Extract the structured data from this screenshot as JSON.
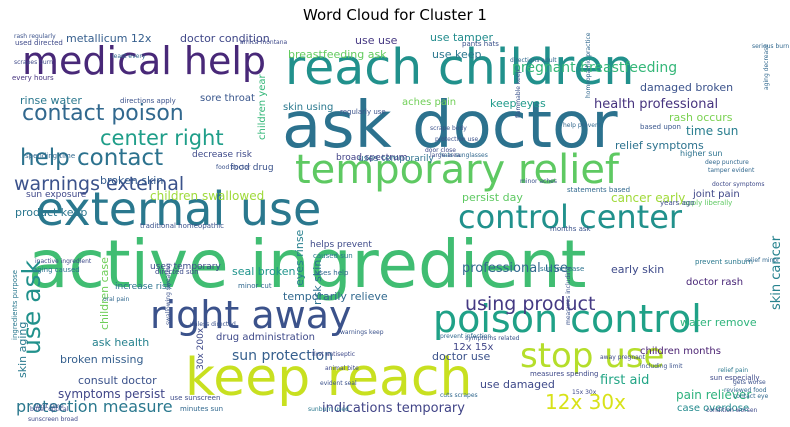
{
  "title": "Word Cloud for Cluster 1",
  "words": [
    {
      "text": "active ingredient",
      "weight": 1.0,
      "color": "#40bd72"
    },
    {
      "text": "ask doctor",
      "weight": 0.98,
      "color": "#2c728e"
    },
    {
      "text": "reach children",
      "weight": 0.92,
      "color": "#21918c"
    },
    {
      "text": "external use",
      "weight": 0.84,
      "color": "#2a788e"
    },
    {
      "text": "keep reach",
      "weight": 0.78,
      "color": "#c8e020"
    },
    {
      "text": "temporary relief",
      "weight": 0.7,
      "color": "#5ec962"
    },
    {
      "text": "medical help",
      "weight": 0.66,
      "color": "#482878"
    },
    {
      "text": "poison control",
      "weight": 0.62,
      "color": "#1fa187"
    },
    {
      "text": "right away",
      "weight": 0.6,
      "color": "#3b528b"
    },
    {
      "text": "control center",
      "weight": 0.54,
      "color": "#21918c"
    },
    {
      "text": "stop use",
      "weight": 0.52,
      "color": "#b5de2b"
    },
    {
      "text": "help contact",
      "weight": 0.44,
      "color": "#2c728e"
    },
    {
      "text": "use ask",
      "weight": 0.44,
      "color": "#21918c"
    },
    {
      "text": "contact poison",
      "weight": 0.42,
      "color": "#31688e"
    },
    {
      "text": "center right",
      "weight": 0.42,
      "color": "#1f9e89"
    },
    {
      "text": "warnings external",
      "weight": 0.38,
      "color": "#3b528b"
    },
    {
      "text": "using product",
      "weight": 0.36,
      "color": "#443983"
    },
    {
      "text": "12x 30x",
      "weight": 0.34,
      "color": "#d8e219"
    },
    {
      "text": "protection measure",
      "weight": 0.3,
      "color": "#2a788e"
    },
    {
      "text": "pregnant breastfeeding",
      "weight": 0.28,
      "color": "#35b779"
    },
    {
      "text": "sun protection",
      "weight": 0.28,
      "color": "#355f8d"
    },
    {
      "text": "professional use",
      "weight": 0.26,
      "color": "#31688e"
    },
    {
      "text": "indications temporary",
      "weight": 0.26,
      "color": "#414487"
    },
    {
      "text": "health professional",
      "weight": 0.24,
      "color": "#46337e"
    },
    {
      "text": "skin cancer",
      "weight": 0.24,
      "color": "#26828e"
    },
    {
      "text": "first aid",
      "weight": 0.24,
      "color": "#21a585"
    },
    {
      "text": "children swallowed",
      "weight": 0.22,
      "color": "#9fda3a"
    },
    {
      "text": "symptoms persist",
      "weight": 0.22,
      "color": "#404688"
    },
    {
      "text": "temporarily relieve",
      "weight": 0.22,
      "color": "#31688e"
    },
    {
      "text": "use damaged",
      "weight": 0.2,
      "color": "#3e4989"
    },
    {
      "text": "time sun",
      "weight": 0.2,
      "color": "#287d8e"
    },
    {
      "text": "cancer early",
      "weight": 0.2,
      "color": "#a0da39"
    },
    {
      "text": "pain reliever",
      "weight": 0.2,
      "color": "#2db27d"
    },
    {
      "text": "broken missing",
      "weight": 0.19,
      "color": "#355f8d"
    },
    {
      "text": "consult doctor",
      "weight": 0.19,
      "color": "#3b528b"
    },
    {
      "text": "ask health",
      "weight": 0.19,
      "color": "#26828e"
    },
    {
      "text": "persist day",
      "weight": 0.19,
      "color": "#5ec962"
    },
    {
      "text": "keep eyes",
      "weight": 0.18,
      "color": "#1f9a8a"
    },
    {
      "text": "damaged broken",
      "weight": 0.18,
      "color": "#3b528b"
    },
    {
      "text": "rash occurs",
      "weight": 0.18,
      "color": "#7ad151"
    },
    {
      "text": "early skin",
      "weight": 0.18,
      "color": "#3e4a89"
    },
    {
      "text": "seal broken",
      "weight": 0.18,
      "color": "#1f948c"
    },
    {
      "text": "relief symptoms",
      "weight": 0.16,
      "color": "#2c728e"
    },
    {
      "text": "broken skin",
      "weight": 0.16,
      "color": "#365c8d"
    },
    {
      "text": "product keep",
      "weight": 0.16,
      "color": "#2a768e"
    },
    {
      "text": "use use",
      "weight": 0.16,
      "color": "#453882"
    },
    {
      "text": "use tamper",
      "weight": 0.16,
      "color": "#228c8d"
    },
    {
      "text": "use keep",
      "weight": 0.16,
      "color": "#2a778e"
    },
    {
      "text": "doctor condition",
      "weight": 0.16,
      "color": "#3f4788"
    },
    {
      "text": "metallicum 12x",
      "weight": 0.16,
      "color": "#355e8d"
    },
    {
      "text": "breastfeeding ask",
      "weight": 0.16,
      "color": "#63cb5f"
    },
    {
      "text": "rinse water",
      "weight": 0.16,
      "color": "#2a778e"
    },
    {
      "text": "water remove",
      "weight": 0.16,
      "color": "#2fb47c"
    },
    {
      "text": "doctor use",
      "weight": 0.16,
      "color": "#3b528b"
    },
    {
      "text": "children months",
      "weight": 0.15,
      "color": "#481f70"
    },
    {
      "text": "drug administration",
      "weight": 0.15,
      "color": "#3e4989"
    },
    {
      "text": "12x 15x",
      "weight": 0.15,
      "color": "#404688"
    },
    {
      "text": "case overdose",
      "weight": 0.14,
      "color": "#238a8d"
    },
    {
      "text": "uses temporary",
      "weight": 0.14,
      "color": "#3e4c8a"
    },
    {
      "text": "skin using",
      "weight": 0.14,
      "color": "#2a788e"
    },
    {
      "text": "aches pain",
      "weight": 0.14,
      "color": "#70cf57"
    },
    {
      "text": "sore throat",
      "weight": 0.14,
      "color": "#39568c"
    },
    {
      "text": "joint pain",
      "weight": 0.14,
      "color": "#3f4788"
    },
    {
      "text": "doctor rash",
      "weight": 0.14,
      "color": "#482576"
    },
    {
      "text": "uses temporarily",
      "weight": 0.12,
      "color": "#2d718e"
    },
    {
      "text": "decrease risk",
      "weight": 0.12,
      "color": "#3e4a89"
    },
    {
      "text": "helps prevent",
      "weight": 0.12,
      "color": "#3e4a89"
    },
    {
      "text": "broad spectrum",
      "weight": 0.12,
      "color": "#414287"
    },
    {
      "text": "sun exposure",
      "weight": 0.12,
      "color": "#3f4788"
    },
    {
      "text": "increase risk",
      "weight": 0.12,
      "color": "#2c728e"
    },
    {
      "text": "children case",
      "weight": 0.12,
      "color": "#6ece58"
    },
    {
      "text": "skin aging",
      "weight": 0.12,
      "color": "#297a8e"
    },
    {
      "text": "eyes rinse",
      "weight": 0.12,
      "color": "#27808e"
    },
    {
      "text": "risk skin",
      "weight": 0.12,
      "color": "#2c728e"
    },
    {
      "text": "children year",
      "weight": 0.11,
      "color": "#35b779"
    },
    {
      "text": "food drug",
      "weight": 0.11,
      "color": "#3b528b"
    },
    {
      "text": "uses help",
      "weight": 0.1,
      "color": "#31688e"
    },
    {
      "text": "use sunscreen",
      "weight": 0.1,
      "color": "#3e4c8a"
    },
    {
      "text": "higher sun",
      "weight": 0.1,
      "color": "#2c728e"
    },
    {
      "text": "regularly use",
      "weight": 0.1,
      "color": "#3b528b"
    },
    {
      "text": "used directed",
      "weight": 0.1,
      "color": "#3e4989"
    },
    {
      "text": "directions apply",
      "weight": 0.1,
      "color": "#3b528b"
    },
    {
      "text": "minutes sun",
      "weight": 0.09,
      "color": "#31688e"
    },
    {
      "text": "measures spending",
      "weight": 0.09,
      "color": "#3e4989"
    },
    {
      "text": "spending time",
      "weight": 0.09,
      "color": "#31688e"
    },
    {
      "text": "directed sun",
      "weight": 0.09,
      "color": "#3e4c8a"
    },
    {
      "text": "based upon",
      "weight": 0.09,
      "color": "#39568c"
    },
    {
      "text": "months ask",
      "weight": 0.09,
      "color": "#3b528b"
    },
    {
      "text": "aging caused",
      "weight": 0.09,
      "color": "#2c728e"
    },
    {
      "text": "apply liberally",
      "weight": 0.09,
      "color": "#5ec962"
    },
    {
      "text": "years ago",
      "weight": 0.09,
      "color": "#3e4c8a"
    },
    {
      "text": "sun increase",
      "weight": 0.09,
      "color": "#2c728e"
    },
    {
      "text": "pants hats",
      "weight": 0.09,
      "color": "#3b528b"
    },
    {
      "text": "every hours",
      "weight": 0.09,
      "color": "#46337e"
    },
    {
      "text": "minor cut",
      "weight": 0.09,
      "color": "#31688e"
    },
    {
      "text": "caused sun",
      "weight": 0.09,
      "color": "#2a788e"
    },
    {
      "text": "statements based",
      "weight": 0.09,
      "color": "#31688e"
    },
    {
      "text": "prevent sunburn",
      "weight": 0.09,
      "color": "#2a788e"
    },
    {
      "text": "sun especially",
      "weight": 0.09,
      "color": "#3e4989"
    },
    {
      "text": "relief pain",
      "weight": 0.08,
      "color": "#2a788e"
    },
    {
      "text": "large area",
      "weight": 0.08,
      "color": "#3e4989"
    },
    {
      "text": "cuts scrapes",
      "weight": 0.08,
      "color": "#31688e"
    },
    {
      "text": "symptoms related",
      "weight": 0.08,
      "color": "#3b528b"
    },
    {
      "text": "including limit",
      "weight": 0.08,
      "color": "#3b528b"
    },
    {
      "text": "aging decrease",
      "weight": 0.08,
      "color": "#31688e"
    },
    {
      "text": "15x 30x",
      "weight": 0.08,
      "color": "#3e4989"
    },
    {
      "text": "30x 200x",
      "weight": 0.08,
      "color": "#3e4989"
    },
    {
      "text": "food doctor",
      "weight": 0.08,
      "color": "#3b528b"
    },
    {
      "text": "ingredients purpose",
      "weight": 0.08,
      "color": "#2a788e"
    },
    {
      "text": "least every",
      "weight": 0.08,
      "color": "#31688e"
    },
    {
      "text": "sunscreen broad",
      "weight": 0.08,
      "color": "#3e4989"
    },
    {
      "text": "measures including",
      "weight": 0.08,
      "color": "#3b528b"
    },
    {
      "text": "reviewed food",
      "weight": 0.08,
      "color": "#31688e"
    },
    {
      "text": "condition worsen",
      "weight": 0.08,
      "color": "#3e4989"
    },
    {
      "text": "protection use",
      "weight": 0.08,
      "color": "#3b528b"
    },
    {
      "text": "help prevent",
      "weight": 0.08,
      "color": "#31688e"
    },
    {
      "text": "scrapes burn",
      "weight": 0.08,
      "color": "#3e4989"
    },
    {
      "text": "serious burn",
      "weight": 0.08,
      "color": "#31688e"
    },
    {
      "text": "limit time",
      "weight": 0.08,
      "color": "#3b528b"
    },
    {
      "text": "sunburn used",
      "weight": 0.08,
      "color": "#2a788e"
    },
    {
      "text": "warnings keep",
      "weight": 0.08,
      "color": "#3b528b"
    },
    {
      "text": "relief minor",
      "weight": 0.08,
      "color": "#31688e"
    },
    {
      "text": "rash regularly",
      "weight": 0.08,
      "color": "#3b528b"
    },
    {
      "text": "animal bite",
      "weight": 0.08,
      "color": "#3e4989"
    },
    {
      "text": "evident seal",
      "weight": 0.08,
      "color": "#3b528b"
    },
    {
      "text": "tamper evident",
      "weight": 0.08,
      "color": "#31688e"
    },
    {
      "text": "inactive ingredient",
      "weight": 0.08,
      "color": "#3e4989"
    },
    {
      "text": "gets worse",
      "weight": 0.08,
      "color": "#3b528b"
    },
    {
      "text": "contact eye",
      "weight": 0.08,
      "color": "#31688e"
    },
    {
      "text": "away pregnant",
      "weight": 0.08,
      "color": "#3e4989"
    },
    {
      "text": "minor aches",
      "weight": 0.08,
      "color": "#3b528b"
    },
    {
      "text": "oral pain",
      "weight": 0.08,
      "color": "#31688e"
    },
    {
      "text": "arnica montana",
      "weight": 0.08,
      "color": "#3e4989"
    },
    {
      "text": "flammable keep",
      "weight": 0.08,
      "color": "#3b528b"
    },
    {
      "text": "deep puncture",
      "weight": 0.08,
      "color": "#31688e"
    },
    {
      "text": "doctor symptoms",
      "weight": 0.08,
      "color": "#3e4989"
    },
    {
      "text": "traditional homeopathic",
      "weight": 0.08,
      "color": "#3b528b"
    },
    {
      "text": "homeopathic practice",
      "weight": 0.08,
      "color": "#31688e"
    },
    {
      "text": "first antiseptic",
      "weight": 0.08,
      "color": "#3e4989"
    },
    {
      "text": "unless directed",
      "weight": 0.08,
      "color": "#3b528b"
    },
    {
      "text": "prevent infection",
      "weight": 0.08,
      "color": "#31688e"
    },
    {
      "text": "door close",
      "weight": 0.08,
      "color": "#3e4989"
    },
    {
      "text": "scrape body",
      "weight": 0.08,
      "color": "#3b528b"
    },
    {
      "text": "directions adult",
      "weight": 0.08,
      "color": "#31688e"
    },
    {
      "text": "bitter optical",
      "weight": 0.08,
      "color": "#3e4989"
    },
    {
      "text": "swallowing sweating",
      "weight": 0.08,
      "color": "#3b528b"
    },
    {
      "text": "hats sunglasses",
      "weight": 0.08,
      "color": "#31688e"
    }
  ]
}
